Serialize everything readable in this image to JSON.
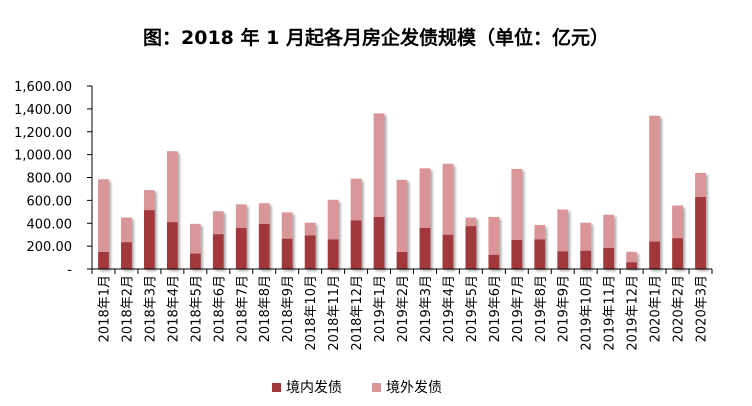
{
  "chart_data": {
    "type": "bar",
    "stacked": true,
    "title": "图：2018 年 1 月起各月房企发债规模（单位：亿元）",
    "xlabel": "",
    "ylabel": "",
    "ylim": [
      0,
      1600
    ],
    "ytick_labels": [
      "-",
      "200.00",
      "400.00",
      "600.00",
      "800.00",
      "1,000.00",
      "1,200.00",
      "1,400.00",
      "1,600.00"
    ],
    "categories": [
      "2018年1月",
      "2018年2月",
      "2018年3月",
      "2018年4月",
      "2018年5月",
      "2018年6月",
      "2018年7月",
      "2018年8月",
      "2018年9月",
      "2018年10月",
      "2018年11月",
      "2018年12月",
      "2019年1月",
      "2019年2月",
      "2019年3月",
      "2019年4月",
      "2019年5月",
      "2019年6月",
      "2019年7月",
      "2019年8月",
      "2019年9月",
      "2019年10月",
      "2019年11月",
      "2019年12月",
      "2020年1月",
      "2020年2月",
      "2020年3月"
    ],
    "series": [
      {
        "name": "境内发债",
        "color": "#a2373a",
        "values": [
          150,
          235,
          515,
          410,
          135,
          305,
          360,
          395,
          265,
          295,
          260,
          425,
          455,
          150,
          360,
          300,
          375,
          125,
          255,
          260,
          155,
          160,
          185,
          60,
          240,
          270,
          630
        ]
      },
      {
        "name": "境外发债",
        "color": "#d99597",
        "values": [
          635,
          215,
          175,
          620,
          260,
          200,
          205,
          180,
          230,
          110,
          345,
          365,
          905,
          630,
          520,
          620,
          75,
          330,
          620,
          125,
          365,
          245,
          290,
          90,
          1100,
          285,
          210
        ]
      }
    ],
    "grid": false,
    "legend_position": "bottom"
  }
}
